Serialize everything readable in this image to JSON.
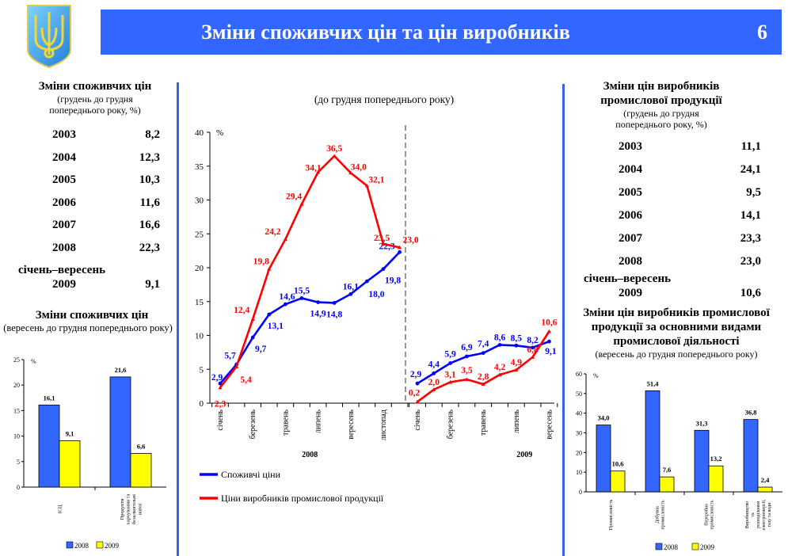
{
  "header": {
    "title": "Зміни споживчих цін та цін виробників",
    "page_number": "6",
    "banner_color": "#3366ff",
    "logo": "ukraine-coat-of-arms"
  },
  "left_table": {
    "title": "Зміни споживчих цін",
    "subtitle_line1": "(грудень до грудня",
    "subtitle_line2": "попереднього року, %)",
    "rows": [
      {
        "year": "2003",
        "value": "8,2"
      },
      {
        "year": "2004",
        "value": "12,3"
      },
      {
        "year": "2005",
        "value": "10,3"
      },
      {
        "year": "2006",
        "value": "11,6"
      },
      {
        "year": "2007",
        "value": "16,6"
      },
      {
        "year": "2008",
        "value": "22,3"
      }
    ],
    "period_label": "січень–вересень",
    "period_year": "2009",
    "period_value": "9,1"
  },
  "right_table": {
    "title_line1": "Зміни цін виробників",
    "title_line2": "промислової продукції",
    "subtitle_line1": "(грудень до грудня",
    "subtitle_line2": "попереднього року, %)",
    "rows": [
      {
        "year": "2003",
        "value": "11,1"
      },
      {
        "year": "2004",
        "value": "24,1"
      },
      {
        "year": "2005",
        "value": "9,5"
      },
      {
        "year": "2006",
        "value": "14,1"
      },
      {
        "year": "2007",
        "value": "23,3"
      },
      {
        "year": "2008",
        "value": "23,0"
      }
    ],
    "period_label": "січень–вересень",
    "period_year": "2009",
    "period_value": "10,6"
  },
  "chart_data": [
    {
      "id": "main-line",
      "type": "line",
      "title": "(до грудня попереднього року)",
      "ylabel": "%",
      "ylim": [
        0,
        40
      ],
      "yticks": [
        0,
        5,
        10,
        15,
        20,
        25,
        30,
        35,
        40
      ],
      "ytick_labels": [
        "0",
        "5",
        "10",
        "15",
        "20",
        "25",
        "30",
        "35",
        "40"
      ],
      "groups": [
        {
          "label": "2008",
          "x_tick_labels": [
            "січень",
            "березень",
            "травень",
            "липень",
            "вересень",
            "листопад"
          ],
          "series": [
            {
              "name": "Споживчі ціни",
              "color": "#0000ff",
              "values": [
                2.9,
                5.7,
                9.7,
                13.1,
                14.6,
                15.5,
                14.9,
                14.8,
                16.1,
                18.0,
                19.8,
                22.3
              ],
              "labels": [
                "2,9",
                "5,7",
                "9,7",
                "13,1",
                "14,6",
                "15,5",
                "14,9",
                "14,8",
                "16,1",
                "18,0",
                "19,8",
                "22,3"
              ]
            },
            {
              "name": "Ціни виробників промислової продукції",
              "color": "#ff0000",
              "values": [
                2.3,
                5.4,
                12.4,
                19.8,
                24.2,
                29.4,
                34.1,
                36.5,
                34.0,
                32.1,
                23.5,
                23.0
              ],
              "labels": [
                "2,3",
                "5,4",
                "12,4",
                "19,8",
                "24,2",
                "29,4",
                "34,1",
                "36,5",
                "34,0",
                "32,1",
                "23,5",
                "23,0"
              ]
            }
          ]
        },
        {
          "label": "2009",
          "x_tick_labels": [
            "січень",
            "березень",
            "травень",
            "липень",
            "вересень"
          ],
          "series": [
            {
              "name": "Споживчі ціни",
              "color": "#0000ff",
              "values": [
                2.9,
                4.4,
                5.9,
                6.9,
                7.4,
                8.6,
                8.5,
                8.2,
                9.1
              ],
              "labels": [
                "2,9",
                "4,4",
                "5,9",
                "6,9",
                "7,4",
                "8,6",
                "8,5",
                "8,2",
                "9,1"
              ]
            },
            {
              "name": "Ціни виробників промислової продукції",
              "color": "#ff0000",
              "values": [
                0.2,
                2.0,
                3.1,
                3.5,
                2.8,
                4.2,
                4.9,
                6.8,
                10.6
              ],
              "labels": [
                "0,2",
                "2,0",
                "3,1",
                "3,5",
                "2,8",
                "4,2",
                "4,9",
                "6,8",
                "10,6"
              ]
            }
          ]
        }
      ],
      "legend": [
        "Споживчі ціни",
        "Ціни виробників промислової продукції"
      ],
      "legend_position": "bottom"
    },
    {
      "id": "cpi-bar",
      "type": "bar",
      "title": "Зміни споживчих цін",
      "subtitle": "(вересень до грудня попереднього року)",
      "ylabel": "%",
      "ylim": [
        0,
        25
      ],
      "yticks": [
        0,
        5,
        10,
        15,
        20,
        25
      ],
      "ytick_labels": [
        "0",
        "5",
        "10",
        "15",
        "20",
        "25"
      ],
      "categories": [
        "ІСЦ",
        "Продукти харчування та безалкогольні напої"
      ],
      "category_lines": [
        [
          "ІСЦ"
        ],
        [
          "Продукти",
          "харчування та",
          "безалкогольні",
          "напої"
        ]
      ],
      "series": [
        {
          "name": "2008",
          "color": "#3366ff",
          "values": [
            16.1,
            21.6
          ],
          "labels": [
            "16,1",
            "21,6"
          ]
        },
        {
          "name": "2009",
          "color": "#ffff00",
          "values": [
            9.1,
            6.6
          ],
          "labels": [
            "9,1",
            "6,6"
          ]
        }
      ],
      "legend_position": "bottom"
    },
    {
      "id": "ppi-bar",
      "type": "bar",
      "title_line1": "Зміни цін виробників промислової",
      "title_line2": "продукції за основними видами",
      "title_line3": "промислової діяльності",
      "subtitle": "(вересень до грудня попереднього року)",
      "ylabel": "%",
      "ylim": [
        0,
        60
      ],
      "yticks": [
        0,
        10,
        20,
        30,
        40,
        50,
        60
      ],
      "ytick_labels": [
        "0",
        "10",
        "20",
        "30",
        "40",
        "50",
        "60"
      ],
      "categories": [
        "Промисловість",
        "Добувна промисловість",
        "Переробна промисловість",
        "Виробництво та розподілення електроенергії, газу та води"
      ],
      "category_lines": [
        [
          "Промисловість"
        ],
        [
          "Добувна",
          "промисловість"
        ],
        [
          "Переробна",
          "промисловість"
        ],
        [
          "Виробництво",
          "та",
          "розподілення",
          "електроенергії,",
          "газу та води"
        ]
      ],
      "series": [
        {
          "name": "2008",
          "color": "#3366ff",
          "values": [
            34.0,
            51.4,
            31.3,
            36.8
          ],
          "labels": [
            "34,0",
            "51,4",
            "31,3",
            "36,8"
          ]
        },
        {
          "name": "2009",
          "color": "#ffff00",
          "values": [
            10.6,
            7.6,
            13.2,
            2.4
          ],
          "labels": [
            "10,6",
            "7,6",
            "13,2",
            "2,4"
          ]
        }
      ],
      "legend_position": "bottom"
    }
  ]
}
